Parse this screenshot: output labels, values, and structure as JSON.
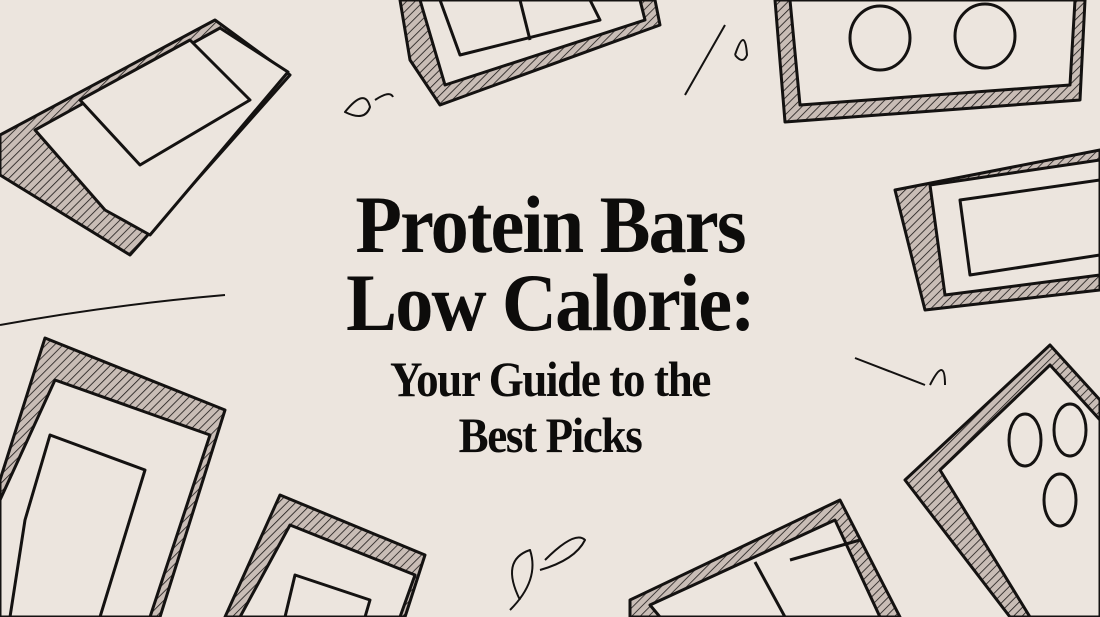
{
  "hero": {
    "title_line1": "Protein Bars",
    "title_line2": "Low Calorie:",
    "subtitle_line1": "Your Guide to the",
    "subtitle_line2": "Best Picks"
  },
  "colors": {
    "background": "#ece5de",
    "ink": "#0d0c0b",
    "shade": "#b7aba5"
  },
  "illustrations": [
    "protein-bar-sketch",
    "squiggle-doodle"
  ]
}
